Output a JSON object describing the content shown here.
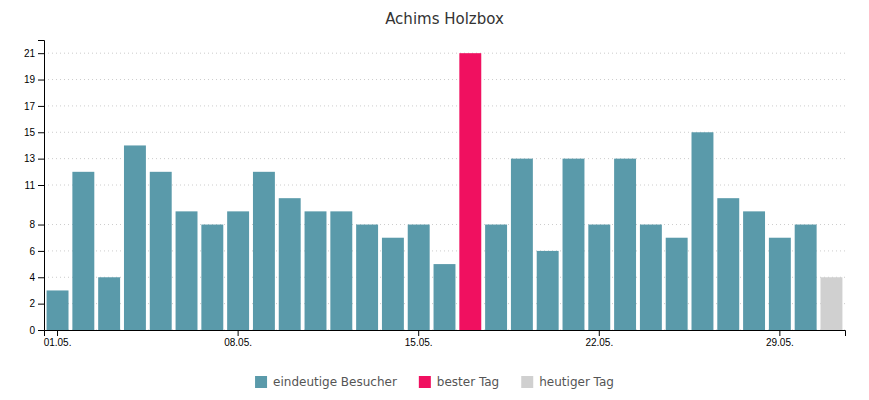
{
  "chart_data": {
    "type": "bar",
    "title": "Achims Holzbox",
    "categories": [
      "01.05.",
      null,
      null,
      null,
      null,
      null,
      null,
      "08.05.",
      null,
      null,
      null,
      null,
      null,
      null,
      "15.05.",
      null,
      null,
      null,
      null,
      null,
      null,
      "22.05.",
      null,
      null,
      null,
      null,
      null,
      null,
      "29.05.",
      null,
      null
    ],
    "series": [
      {
        "name": "eindeutige Besucher",
        "color": "#5a9aaa",
        "values": [
          3,
          12,
          4,
          14,
          12,
          9,
          8,
          9,
          12,
          10,
          9,
          9,
          8,
          7,
          8,
          5,
          null,
          8,
          13,
          6,
          13,
          8,
          13,
          8,
          7,
          15,
          10,
          9,
          7,
          8,
          null
        ]
      },
      {
        "name": "bester Tag",
        "color": "#f01060",
        "values": [
          null,
          null,
          null,
          null,
          null,
          null,
          null,
          null,
          null,
          null,
          null,
          null,
          null,
          null,
          null,
          null,
          21,
          null,
          null,
          null,
          null,
          null,
          null,
          null,
          null,
          null,
          null,
          null,
          null,
          null,
          null
        ]
      },
      {
        "name": "heutiger Tag",
        "color": "#d0d0d0",
        "values": [
          null,
          null,
          null,
          null,
          null,
          null,
          null,
          null,
          null,
          null,
          null,
          null,
          null,
          null,
          null,
          null,
          null,
          null,
          null,
          null,
          null,
          null,
          null,
          null,
          null,
          null,
          null,
          null,
          null,
          null,
          4
        ]
      }
    ],
    "ylim": [
      0,
      22
    ],
    "yticks": [
      0,
      2,
      4,
      6,
      8,
      11,
      13,
      15,
      17,
      19,
      21
    ],
    "grid": true,
    "legend": "bottom"
  }
}
